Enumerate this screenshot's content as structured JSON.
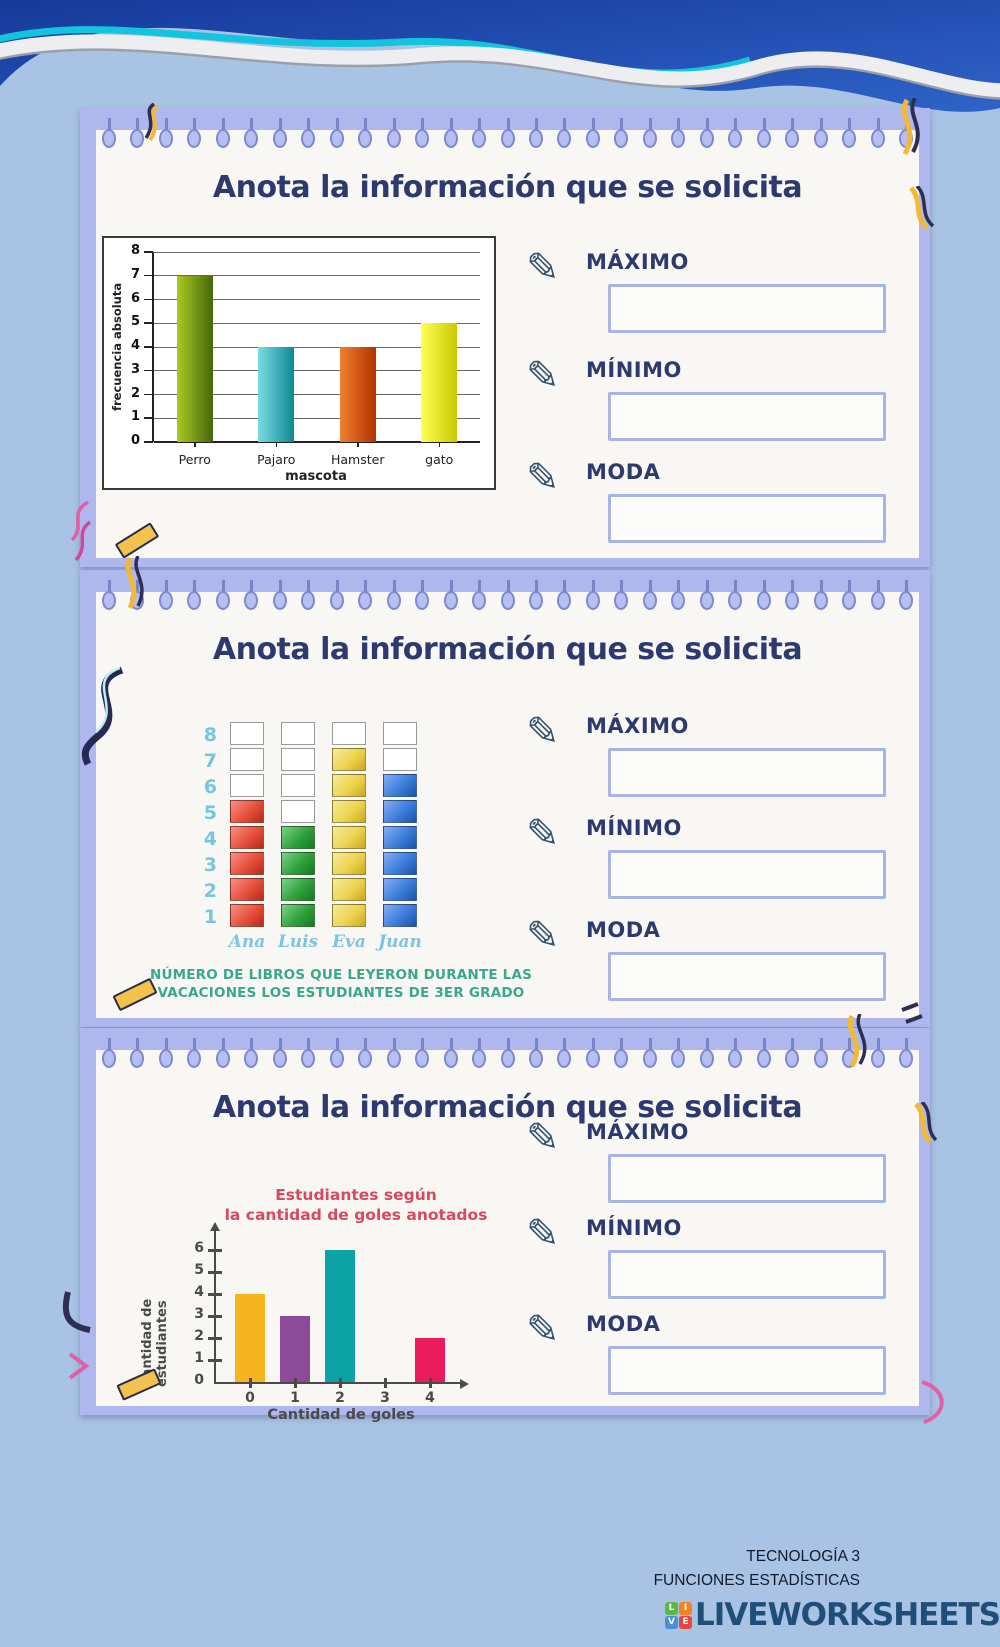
{
  "theme": {
    "page_background": "#a9c3e4",
    "card_background": "#aeb8ee",
    "paper_color": "#f8f7f4",
    "title_color": "#2e3a6e",
    "input_border_color": "#a9b3e6",
    "caption_color": "#38a78c",
    "chart3_title_color": "#d9485f",
    "footer_text_color": "#111a2e",
    "logo_text_color": "#1f4e79"
  },
  "worksheet": {
    "icons": {
      "pen": "✎"
    },
    "panels": [
      {
        "title": "Anota la información que se solicita",
        "fields": [
          {
            "label": "MÁXIMO",
            "value": ""
          },
          {
            "label": "MÍNIMO",
            "value": ""
          },
          {
            "label": "MODA",
            "value": ""
          }
        ]
      },
      {
        "title": "Anota la información que se solicita",
        "fields": [
          {
            "label": "MÁXIMO",
            "value": ""
          },
          {
            "label": "MÍNIMO",
            "value": ""
          },
          {
            "label": "MODA",
            "value": ""
          }
        ]
      },
      {
        "title": "Anota la información que se solicita",
        "fields": [
          {
            "label": "MÁXIMO",
            "value": ""
          },
          {
            "label": "MÍNIMO",
            "value": ""
          },
          {
            "label": "MODA",
            "value": ""
          }
        ]
      }
    ]
  },
  "chart_data": [
    {
      "type": "bar",
      "title": "",
      "categories": [
        "Perro",
        "Pajaro",
        "Hamster",
        "gato"
      ],
      "values": [
        7,
        4,
        4,
        5
      ],
      "xlabel": "mascota",
      "ylabel": "frecuencia absoluta",
      "ylim": [
        0,
        8
      ],
      "ytick_step": 1,
      "grid": true,
      "legend": "none",
      "bar_colors": [
        [
          "#a9c922",
          "#45670a"
        ],
        [
          "#7bdce2",
          "#0e8894"
        ],
        [
          "#f08030",
          "#b23200"
        ],
        [
          "#ffff55",
          "#c9c900"
        ]
      ]
    },
    {
      "type": "bar",
      "style": "stacked-blocks-pictograph",
      "categories": [
        "Ana",
        "Luis",
        "Eva",
        "Juan"
      ],
      "values": [
        5,
        4,
        7,
        6
      ],
      "ylim": [
        0,
        8
      ],
      "grid": true,
      "block_colors": [
        [
          "#f59084",
          "#e8503c",
          "#b52a18"
        ],
        [
          "#7fd08a",
          "#2fa23c",
          "#147a20"
        ],
        [
          "#f7ea9a",
          "#edd44e",
          "#cba81e"
        ],
        [
          "#85aef0",
          "#3b7ddd",
          "#1c53a8"
        ]
      ],
      "caption": "NÚMERO DE LIBROS QUE LEYERON DURANTE LAS VACACIONES LOS ESTUDIANTES DE 3ER GRADO",
      "caption_lines": [
        "NÚMERO DE LIBROS QUE LEYERON DURANTE LAS",
        "VACACIONES LOS ESTUDIANTES DE 3ER GRADO"
      ]
    },
    {
      "type": "bar",
      "title": "Estudiantes según la cantidad de goles anotados",
      "title_lines": [
        "Estudiantes según",
        "la cantidad de goles anotados"
      ],
      "categories": [
        "0",
        "1",
        "2",
        "3",
        "4"
      ],
      "values": [
        4,
        3,
        6,
        0,
        2
      ],
      "xlabel": "Cantidad de goles",
      "ylabel": "Cantidad de estudiantes",
      "ylim": [
        0,
        6
      ],
      "ytick_step": 1,
      "grid": false,
      "bar_colors": [
        "#f6b51d",
        "#8d4a9b",
        "#0ba3a6",
        "",
        "#ea1c5d"
      ]
    }
  ],
  "footer": {
    "credit_line1": "TECNOLOGÍA 3",
    "credit_line2": "FUNCIONES ESTADÍSTICAS",
    "logo": {
      "tiles": [
        {
          "letter": "L",
          "color": "#58b947"
        },
        {
          "letter": "I",
          "color": "#f58220"
        },
        {
          "letter": "V",
          "color": "#4a90d9"
        },
        {
          "letter": "E",
          "color": "#e8453c"
        }
      ],
      "text": "LIVEWORKSHEETS"
    }
  }
}
